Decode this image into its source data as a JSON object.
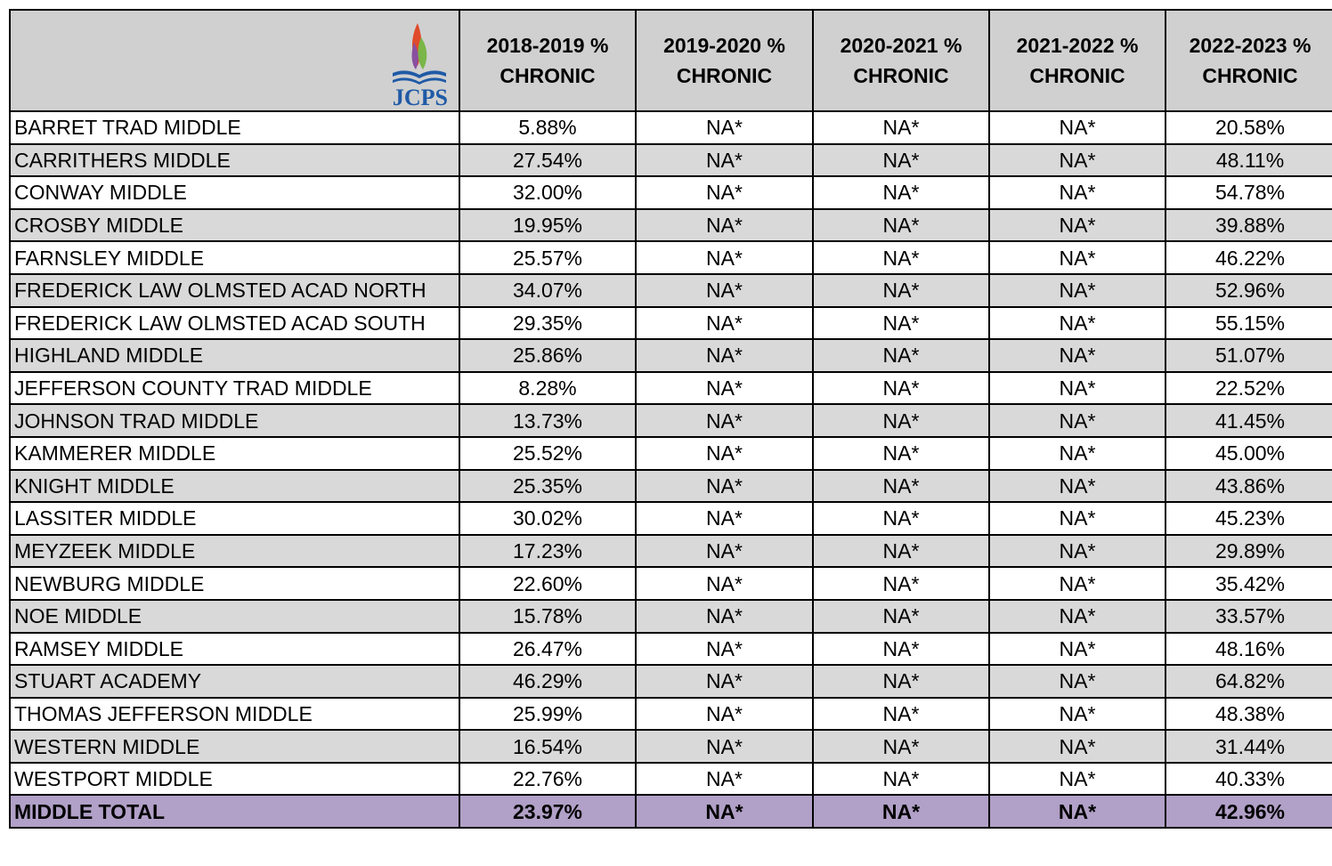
{
  "table": {
    "logo_text": "JCPS",
    "columns": [
      [
        "2018-2019 %",
        "CHRONIC"
      ],
      [
        "2019-2020 %",
        "CHRONIC"
      ],
      [
        "2020-2021 %",
        "CHRONIC"
      ],
      [
        "2021-2022 %",
        "CHRONIC"
      ],
      [
        "2022-2023 %",
        "CHRONIC"
      ]
    ],
    "rows": [
      [
        "BARRET TRAD MIDDLE",
        "5.88%",
        "NA*",
        "NA*",
        "NA*",
        "20.58%"
      ],
      [
        "CARRITHERS MIDDLE",
        "27.54%",
        "NA*",
        "NA*",
        "NA*",
        "48.11%"
      ],
      [
        "CONWAY MIDDLE",
        "32.00%",
        "NA*",
        "NA*",
        "NA*",
        "54.78%"
      ],
      [
        "CROSBY MIDDLE",
        "19.95%",
        "NA*",
        "NA*",
        "NA*",
        "39.88%"
      ],
      [
        "FARNSLEY MIDDLE",
        "25.57%",
        "NA*",
        "NA*",
        "NA*",
        "46.22%"
      ],
      [
        "FREDERICK LAW OLMSTED ACAD NORTH",
        "34.07%",
        "NA*",
        "NA*",
        "NA*",
        "52.96%"
      ],
      [
        "FREDERICK LAW OLMSTED ACAD SOUTH",
        "29.35%",
        "NA*",
        "NA*",
        "NA*",
        "55.15%"
      ],
      [
        "HIGHLAND MIDDLE",
        "25.86%",
        "NA*",
        "NA*",
        "NA*",
        "51.07%"
      ],
      [
        "JEFFERSON COUNTY TRAD MIDDLE",
        "8.28%",
        "NA*",
        "NA*",
        "NA*",
        "22.52%"
      ],
      [
        "JOHNSON TRAD MIDDLE",
        "13.73%",
        "NA*",
        "NA*",
        "NA*",
        "41.45%"
      ],
      [
        "KAMMERER MIDDLE",
        "25.52%",
        "NA*",
        "NA*",
        "NA*",
        "45.00%"
      ],
      [
        "KNIGHT MIDDLE",
        "25.35%",
        "NA*",
        "NA*",
        "NA*",
        "43.86%"
      ],
      [
        "LASSITER MIDDLE",
        "30.02%",
        "NA*",
        "NA*",
        "NA*",
        "45.23%"
      ],
      [
        "MEYZEEK MIDDLE",
        "17.23%",
        "NA*",
        "NA*",
        "NA*",
        "29.89%"
      ],
      [
        "NEWBURG MIDDLE",
        "22.60%",
        "NA*",
        "NA*",
        "NA*",
        "35.42%"
      ],
      [
        "NOE MIDDLE",
        "15.78%",
        "NA*",
        "NA*",
        "NA*",
        "33.57%"
      ],
      [
        "RAMSEY MIDDLE",
        "26.47%",
        "NA*",
        "NA*",
        "NA*",
        "48.16%"
      ],
      [
        "STUART ACADEMY",
        "46.29%",
        "NA*",
        "NA*",
        "NA*",
        "64.82%"
      ],
      [
        "THOMAS JEFFERSON MIDDLE",
        "25.99%",
        "NA*",
        "NA*",
        "NA*",
        "48.38%"
      ],
      [
        "WESTERN MIDDLE",
        "16.54%",
        "NA*",
        "NA*",
        "NA*",
        "31.44%"
      ],
      [
        "WESTPORT MIDDLE",
        "22.76%",
        "NA*",
        "NA*",
        "NA*",
        "40.33%"
      ]
    ],
    "total": [
      "MIDDLE TOTAL",
      "23.97%",
      "NA*",
      "NA*",
      "NA*",
      "42.96%"
    ]
  }
}
